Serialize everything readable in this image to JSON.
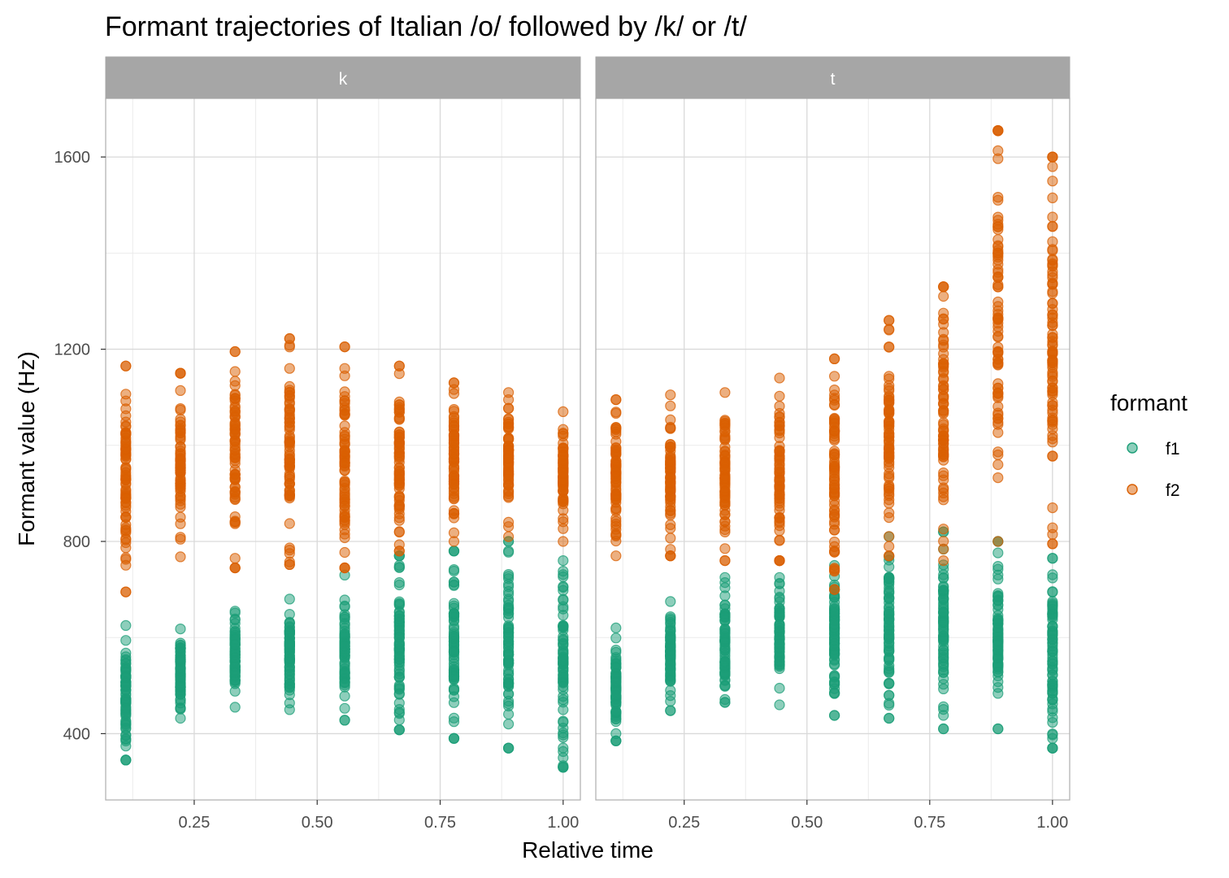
{
  "chart_data": {
    "type": "scatter",
    "title": "Formant trajectories of Italian /o/ followed by /k/ or /t/",
    "xlabel": "Relative time",
    "ylabel": "Formant value (Hz)",
    "xlim": [
      0.07,
      1.035
    ],
    "ylim": [
      262,
      1722
    ],
    "x_ticks": [
      0.25,
      0.5,
      0.75,
      1.0
    ],
    "x_tick_labels": [
      "0.25",
      "0.50",
      "0.75",
      "1.00"
    ],
    "y_ticks": [
      400,
      800,
      1200,
      1600
    ],
    "y_tick_labels": [
      "400",
      "800",
      "1200",
      "1600"
    ],
    "grid": true,
    "legend": {
      "title": "formant",
      "position": "right",
      "entries": [
        {
          "label": "f1",
          "color": "#1b9e77"
        },
        {
          "label": "f2",
          "color": "#d95f02"
        }
      ]
    },
    "x_positions": [
      0.111,
      0.222,
      0.333,
      0.444,
      0.556,
      0.667,
      0.778,
      0.889,
      1.0
    ],
    "facets": [
      {
        "label": "k",
        "series": [
          {
            "name": "f1",
            "color": "#1b9e77",
            "min": [
              345,
              432,
              455,
              450,
              428,
              408,
              390,
              370,
              330
            ],
            "max": [
              625,
              618,
              655,
              680,
              730,
              770,
              780,
              800,
              760
            ],
            "outliers": [
              [
                0.111,
                388
              ],
              [
                0.111,
                345
              ],
              [
                0.556,
                428
              ],
              [
                0.667,
                408
              ],
              [
                0.778,
                390
              ],
              [
                0.889,
                370
              ],
              [
                1.0,
                330
              ],
              [
                1.0,
                350
              ],
              [
                0.889,
                780
              ],
              [
                0.889,
                800
              ],
              [
                0.778,
                780
              ],
              [
                0.667,
                770
              ]
            ]
          },
          {
            "name": "f2",
            "color": "#d95f02",
            "min": [
              695,
              768,
              745,
              752,
              745,
              780,
              800,
              810,
              800
            ],
            "max": [
              1165,
              1150,
              1195,
              1222,
              1205,
              1165,
              1130,
              1110,
              1070
            ],
            "outliers": [
              [
                0.111,
                695
              ],
              [
                0.333,
                745
              ],
              [
                0.333,
                765
              ],
              [
                0.444,
                752
              ],
              [
                0.444,
                775
              ],
              [
                0.556,
                745
              ],
              [
                0.111,
                1165
              ],
              [
                0.222,
                1150
              ],
              [
                0.333,
                1195
              ],
              [
                0.444,
                1222
              ],
              [
                0.444,
                1160
              ],
              [
                0.556,
                1205
              ],
              [
                0.556,
                1160
              ],
              [
                0.667,
                1165
              ]
            ]
          }
        ]
      },
      {
        "label": "t",
        "series": [
          {
            "name": "f1",
            "color": "#1b9e77",
            "min": [
              385,
              448,
              465,
              460,
              438,
              432,
              410,
              410,
              370
            ],
            "max": [
              620,
              675,
              725,
              725,
              750,
              810,
              820,
              800,
              765
            ],
            "outliers": [
              [
                0.111,
                385
              ],
              [
                0.111,
                400
              ],
              [
                0.556,
                438
              ],
              [
                0.667,
                432
              ],
              [
                0.778,
                410
              ],
              [
                0.889,
                410
              ],
              [
                1.0,
                370
              ],
              [
                1.0,
                390
              ],
              [
                0.778,
                820
              ],
              [
                0.889,
                800
              ],
              [
                1.0,
                765
              ]
            ]
          },
          {
            "name": "f2",
            "color": "#d95f02",
            "min": [
              770,
              770,
              760,
              760,
              700,
              770,
              760,
              800,
              795
            ],
            "max": [
              1095,
              1105,
              1110,
              1140,
              1180,
              1260,
              1330,
              1655,
              1600
            ],
            "outliers": [
              [
                0.556,
                700
              ],
              [
                0.556,
                740
              ],
              [
                0.667,
                1260
              ],
              [
                0.667,
                1240
              ],
              [
                0.667,
                1205
              ],
              [
                0.778,
                1330
              ],
              [
                0.778,
                1310
              ],
              [
                0.778,
                1275
              ],
              [
                0.778,
                1235
              ],
              [
                0.889,
                1655
              ],
              [
                0.889,
                1510
              ],
              [
                0.889,
                1460
              ],
              [
                0.889,
                1400
              ],
              [
                0.889,
                1360
              ],
              [
                0.889,
                1280
              ],
              [
                1.0,
                1600
              ],
              [
                1.0,
                1580
              ],
              [
                1.0,
                1550
              ],
              [
                1.0,
                1515
              ],
              [
                1.0,
                1475
              ],
              [
                1.0,
                1405
              ],
              [
                1.0,
                1385
              ],
              [
                1.0,
                1335
              ],
              [
                1.0,
                1295
              ],
              [
                1.0,
                1265
              ],
              [
                1.0,
                795
              ],
              [
                1.0,
                870
              ]
            ]
          }
        ]
      }
    ]
  }
}
